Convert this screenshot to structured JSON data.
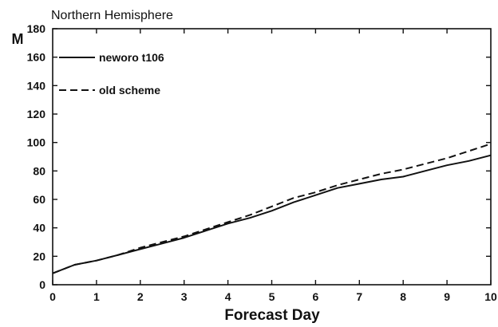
{
  "chart_data": {
    "type": "line",
    "title": "Northern Hemisphere",
    "xlabel": "Forecast Day",
    "ylabel": "M",
    "xlim": [
      0,
      10
    ],
    "ylim": [
      0,
      180
    ],
    "xticks": [
      0,
      1,
      2,
      3,
      4,
      5,
      6,
      7,
      8,
      9,
      10
    ],
    "yticks": [
      0,
      20,
      40,
      60,
      80,
      100,
      120,
      140,
      160,
      180
    ],
    "grid": false,
    "legend_position": "top-left",
    "series": [
      {
        "name": "neworo t106",
        "style": "solid",
        "color": "#111111",
        "x": [
          0,
          0.5,
          1,
          1.5,
          2,
          2.5,
          3,
          3.5,
          4,
          4.5,
          5,
          5.5,
          6,
          6.5,
          7,
          7.5,
          8,
          8.5,
          9,
          9.5,
          10
        ],
        "y": [
          8,
          14,
          17,
          21,
          25,
          29,
          33,
          38,
          43,
          47,
          52,
          58,
          63,
          68,
          71,
          74,
          76,
          80,
          84,
          87,
          91
        ]
      },
      {
        "name": "old scheme",
        "style": "dashed",
        "color": "#111111",
        "x": [
          0,
          0.5,
          1,
          1.5,
          2,
          2.5,
          3,
          3.5,
          4,
          4.5,
          5,
          5.5,
          6,
          6.5,
          7,
          7.5,
          8,
          8.5,
          9,
          9.5,
          10
        ],
        "y": [
          8,
          14,
          17,
          21,
          26,
          30,
          34,
          39,
          44,
          49,
          55,
          61,
          65,
          70,
          74,
          78,
          81,
          85,
          89,
          94,
          99
        ]
      }
    ]
  }
}
